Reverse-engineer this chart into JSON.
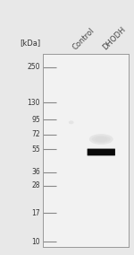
{
  "background_color": "#e8e8e8",
  "gel_bg": "#f2f2f2",
  "border_color": "#999999",
  "ladder_kda": [
    250,
    130,
    95,
    72,
    55,
    36,
    28,
    17,
    10
  ],
  "band_kda": 52,
  "band_color": "#0a0a0a",
  "col_labels": [
    "Control",
    "DHODH"
  ],
  "kda_label": "[kDa]",
  "label_fontsize": 6.0,
  "kda_fontsize": 6.0,
  "tick_fontsize": 5.5,
  "ylim_kda_log": [
    9.0,
    320.0
  ],
  "fig_width": 1.5,
  "fig_height": 2.84,
  "dpi": 100
}
